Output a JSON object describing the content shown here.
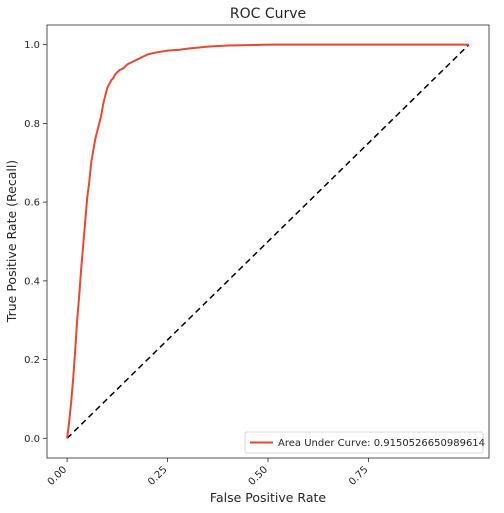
{
  "chart_data": {
    "type": "line",
    "title": "ROC Curve",
    "xlabel": "False Positive Rate",
    "ylabel": "True Positive Rate (Recall)",
    "xlim": [
      -0.05,
      1.05
    ],
    "ylim": [
      -0.05,
      1.05
    ],
    "x_ticks": [
      0.0,
      0.25,
      0.5,
      0.75
    ],
    "x_tick_labels": [
      "0.00",
      "0.25",
      "0.50",
      "0.75"
    ],
    "y_ticks": [
      0.0,
      0.2,
      0.4,
      0.6,
      0.8,
      1.0
    ],
    "y_tick_labels": [
      "0.0",
      "0.2",
      "0.4",
      "0.6",
      "0.8",
      "1.0"
    ],
    "grid": false,
    "legend_placement": "lower-right",
    "series": [
      {
        "name": "Area Under Curve: 0.9150526650989614",
        "color": "#e24a33",
        "x": [
          0.0,
          0.005,
          0.01,
          0.015,
          0.02,
          0.025,
          0.03,
          0.035,
          0.04,
          0.045,
          0.05,
          0.055,
          0.06,
          0.065,
          0.07,
          0.075,
          0.08,
          0.085,
          0.09,
          0.095,
          0.1,
          0.105,
          0.11,
          0.115,
          0.12,
          0.13,
          0.14,
          0.15,
          0.16,
          0.18,
          0.2,
          0.22,
          0.25,
          0.28,
          0.3,
          0.35,
          0.4,
          0.45,
          0.5,
          0.6,
          0.7,
          0.8,
          0.9,
          1.0
        ],
        "y": [
          0.0,
          0.04,
          0.09,
          0.15,
          0.22,
          0.3,
          0.36,
          0.43,
          0.49,
          0.55,
          0.61,
          0.65,
          0.7,
          0.73,
          0.76,
          0.78,
          0.8,
          0.82,
          0.85,
          0.87,
          0.89,
          0.9,
          0.91,
          0.915,
          0.925,
          0.935,
          0.94,
          0.95,
          0.955,
          0.965,
          0.975,
          0.98,
          0.985,
          0.987,
          0.99,
          0.995,
          0.998,
          0.999,
          1.0,
          1.0,
          1.0,
          1.0,
          1.0,
          1.0
        ]
      },
      {
        "name": "",
        "color": "#000000",
        "style": "dashed",
        "x": [
          0.0,
          1.0
        ],
        "y": [
          0.0,
          1.0
        ]
      }
    ]
  }
}
